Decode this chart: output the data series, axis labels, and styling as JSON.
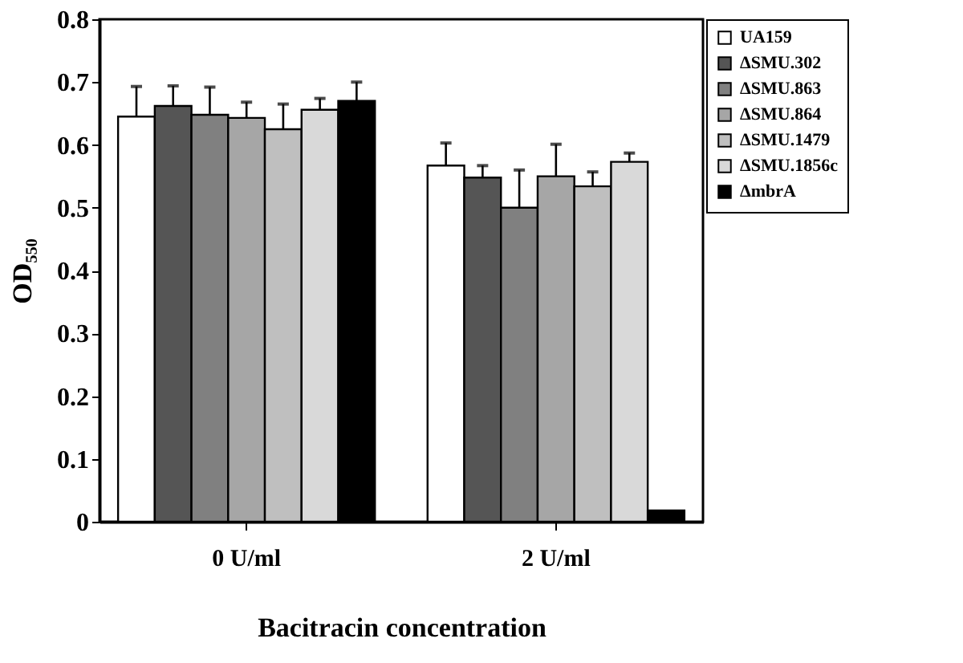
{
  "chart_data": {
    "type": "bar",
    "xlabel": "Bacitracin concentration",
    "ylabel": "OD₅₅₀",
    "categories": [
      "0 U/ml",
      "2 U/ml"
    ],
    "series": [
      {
        "name": "UA159",
        "color": "#ffffff",
        "values": [
          0.645,
          0.567
        ],
        "errors": [
          [
            0.645,
            0.693
          ],
          [
            0.567,
            0.603
          ]
        ]
      },
      {
        "name": "ΔSMU.302",
        "color": "#555555",
        "values": [
          0.662,
          0.548
        ],
        "errors": [
          [
            0.662,
            0.694
          ],
          [
            0.548,
            0.567
          ]
        ]
      },
      {
        "name": "ΔSMU.863",
        "color": "#808080",
        "values": [
          0.648,
          0.5
        ],
        "errors": [
          [
            0.648,
            0.692
          ],
          [
            0.5,
            0.56
          ]
        ]
      },
      {
        "name": "ΔSMU.864",
        "color": "#a6a6a6",
        "values": [
          0.643,
          0.55
        ],
        "errors": [
          [
            0.643,
            0.668
          ],
          [
            0.55,
            0.601
          ]
        ]
      },
      {
        "name": "ΔSMU.1479",
        "color": "#bfbfbf",
        "values": [
          0.625,
          0.534
        ],
        "errors": [
          [
            0.625,
            0.665
          ],
          [
            0.534,
            0.557
          ]
        ]
      },
      {
        "name": "ΔSMU.1856c",
        "color": "#d9d9d9",
        "values": [
          0.656,
          0.573
        ],
        "errors": [
          [
            0.656,
            0.674
          ],
          [
            0.573,
            0.587
          ]
        ]
      },
      {
        "name": "ΔmbrA",
        "color": "#000000",
        "values": [
          0.67,
          0.018
        ],
        "errors": [
          [
            0.67,
            0.7
          ],
          null
        ]
      }
    ],
    "ylim": [
      0,
      0.8
    ],
    "yticks": [
      0,
      0.1,
      0.2,
      0.3,
      0.4,
      0.5,
      0.6,
      0.7,
      0.8
    ],
    "legend": "right"
  }
}
